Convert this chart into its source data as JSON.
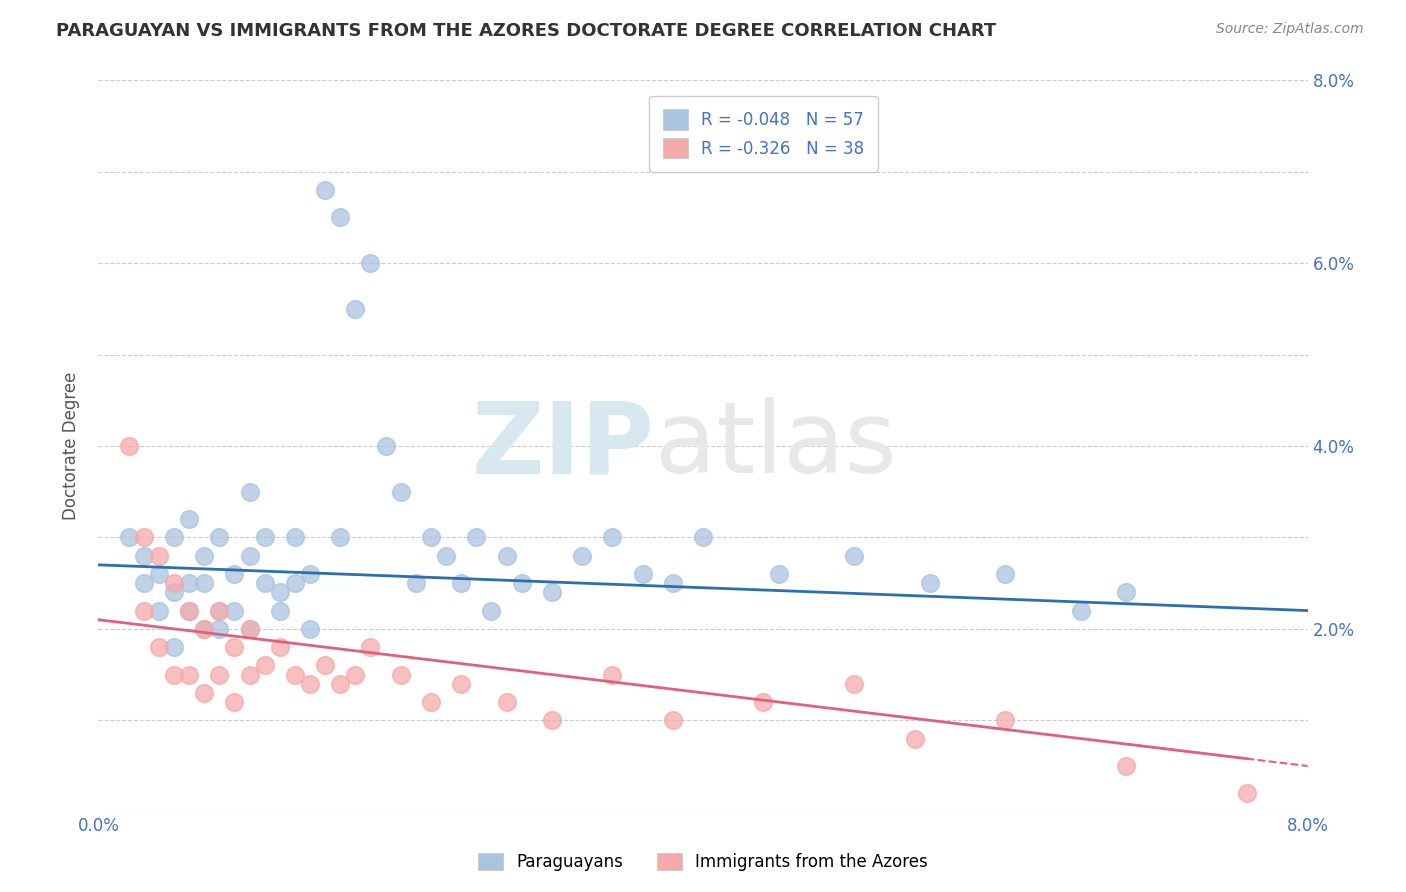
{
  "title": "PARAGUAYAN VS IMMIGRANTS FROM THE AZORES DOCTORATE DEGREE CORRELATION CHART",
  "source": "Source: ZipAtlas.com",
  "ylabel": "Doctorate Degree",
  "xlim": [
    0.0,
    0.08
  ],
  "ylim": [
    0.0,
    0.08
  ],
  "blue_R": -0.048,
  "blue_N": 57,
  "pink_R": -0.326,
  "pink_N": 38,
  "blue_color": "#aac4e0",
  "pink_color": "#f5aaaa",
  "blue_line_color": "#2c6fad",
  "pink_line_color": "#e06080",
  "legend_label_blue": "Paraguayans",
  "legend_label_pink": "Immigrants from the Azores",
  "blue_scatter_x": [
    0.002,
    0.003,
    0.003,
    0.004,
    0.004,
    0.005,
    0.005,
    0.005,
    0.006,
    0.006,
    0.006,
    0.007,
    0.007,
    0.007,
    0.008,
    0.008,
    0.008,
    0.009,
    0.009,
    0.01,
    0.01,
    0.01,
    0.011,
    0.011,
    0.012,
    0.012,
    0.013,
    0.013,
    0.014,
    0.014,
    0.015,
    0.016,
    0.016,
    0.017,
    0.018,
    0.019,
    0.02,
    0.021,
    0.022,
    0.023,
    0.024,
    0.025,
    0.026,
    0.027,
    0.028,
    0.03,
    0.032,
    0.034,
    0.036,
    0.038,
    0.04,
    0.045,
    0.05,
    0.055,
    0.06,
    0.065,
    0.068
  ],
  "blue_scatter_y": [
    0.03,
    0.028,
    0.025,
    0.026,
    0.022,
    0.024,
    0.03,
    0.018,
    0.025,
    0.022,
    0.032,
    0.02,
    0.025,
    0.028,
    0.022,
    0.03,
    0.02,
    0.026,
    0.022,
    0.028,
    0.035,
    0.02,
    0.025,
    0.03,
    0.024,
    0.022,
    0.03,
    0.025,
    0.026,
    0.02,
    0.068,
    0.065,
    0.03,
    0.055,
    0.06,
    0.04,
    0.035,
    0.025,
    0.03,
    0.028,
    0.025,
    0.03,
    0.022,
    0.028,
    0.025,
    0.024,
    0.028,
    0.03,
    0.026,
    0.025,
    0.03,
    0.026,
    0.028,
    0.025,
    0.026,
    0.022,
    0.024
  ],
  "pink_scatter_x": [
    0.002,
    0.003,
    0.003,
    0.004,
    0.004,
    0.005,
    0.005,
    0.006,
    0.006,
    0.007,
    0.007,
    0.008,
    0.008,
    0.009,
    0.009,
    0.01,
    0.01,
    0.011,
    0.012,
    0.013,
    0.014,
    0.015,
    0.016,
    0.017,
    0.018,
    0.02,
    0.022,
    0.024,
    0.027,
    0.03,
    0.034,
    0.038,
    0.044,
    0.05,
    0.054,
    0.06,
    0.068,
    0.076
  ],
  "pink_scatter_y": [
    0.04,
    0.03,
    0.022,
    0.028,
    0.018,
    0.025,
    0.015,
    0.022,
    0.015,
    0.02,
    0.013,
    0.022,
    0.015,
    0.018,
    0.012,
    0.02,
    0.015,
    0.016,
    0.018,
    0.015,
    0.014,
    0.016,
    0.014,
    0.015,
    0.018,
    0.015,
    0.012,
    0.014,
    0.012,
    0.01,
    0.015,
    0.01,
    0.012,
    0.014,
    0.008,
    0.01,
    0.005,
    0.002
  ]
}
